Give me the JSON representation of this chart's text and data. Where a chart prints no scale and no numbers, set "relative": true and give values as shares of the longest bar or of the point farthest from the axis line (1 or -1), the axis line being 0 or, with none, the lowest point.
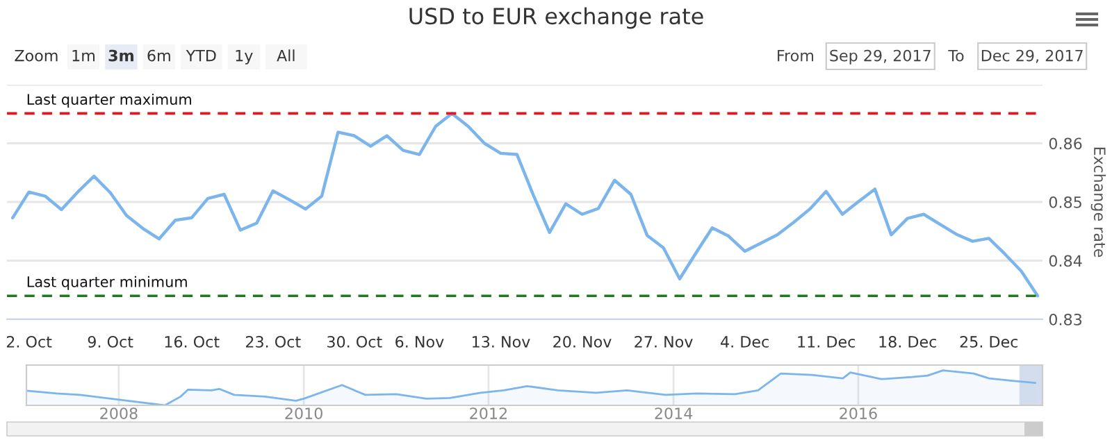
{
  "chart_data": [
    {
      "type": "line",
      "title": "USD to EUR exchange rate",
      "ylabel": "Exchange rate",
      "color": "#7cb5ec",
      "categories": [
        null,
        "2. Oct",
        null,
        null,
        null,
        null,
        "9. Oct",
        null,
        null,
        null,
        null,
        "16. Oct",
        null,
        null,
        null,
        null,
        "23. Oct",
        null,
        null,
        null,
        null,
        "30. Oct",
        null,
        null,
        null,
        "6. Nov",
        null,
        null,
        null,
        null,
        "13. Nov",
        null,
        null,
        null,
        null,
        "20. Nov",
        null,
        null,
        null,
        null,
        "27. Nov",
        null,
        null,
        null,
        null,
        "4. Dec",
        null,
        null,
        null,
        null,
        "11. Dec",
        null,
        null,
        null,
        null,
        "18. Dec",
        null,
        null,
        null,
        null,
        "25. Dec",
        null,
        null,
        null
      ],
      "values": [
        0.8473,
        0.8517,
        0.851,
        0.8487,
        0.8517,
        0.8544,
        0.8516,
        0.8477,
        0.8455,
        0.8437,
        0.8469,
        0.8473,
        0.8506,
        0.8513,
        0.8452,
        0.8464,
        0.8519,
        0.8504,
        0.8488,
        0.851,
        0.8619,
        0.8613,
        0.8595,
        0.8613,
        0.8588,
        0.8581,
        0.8629,
        0.8651,
        0.8629,
        0.86,
        0.8583,
        0.8581,
        0.8512,
        0.8448,
        0.8497,
        0.8479,
        0.8489,
        0.8537,
        0.8513,
        0.8443,
        0.8422,
        0.8369,
        0.8413,
        0.8456,
        0.8442,
        0.8416,
        0.843,
        0.8444,
        0.8465,
        0.8488,
        0.8518,
        0.8479,
        0.8501,
        0.8522,
        0.8444,
        0.8472,
        0.8479,
        0.8462,
        0.8445,
        0.8433,
        0.8438,
        0.8411,
        0.8382,
        0.834
      ],
      "ylim": [
        0.83,
        0.87
      ],
      "yticks": [
        0.83,
        0.84,
        0.85,
        0.86,
        {
          "value": 0.87,
          "label": null
        }
      ],
      "ref_lines": [
        {
          "axis": "y",
          "value": 0.8651,
          "label": "Last quarter maximum",
          "color": "#e8141e",
          "line_style": "dashed"
        },
        {
          "axis": "y",
          "value": 0.834,
          "label": "Last quarter minimum",
          "color": "#1f7a1f",
          "line_style": "dashed"
        }
      ],
      "annotations": [
        "Zoom",
        "1m",
        "3m",
        "6m",
        "YTD",
        "1y",
        "All",
        "From",
        "Sep 29, 2017",
        "To",
        "Dec 29, 2017"
      ],
      "grid": "y",
      "legend": false,
      "marker": "none",
      "line_style": "solid"
    },
    {
      "type": "area",
      "relative": true,
      "color": "#7cb5ec",
      "x": [
        "2007-01",
        "2007-05",
        "2007-08",
        "2007-12",
        "2008-04",
        "2008-07",
        "2008-09",
        "2008-10",
        "2009-01",
        "2009-02",
        "2009-04",
        "2009-08",
        "2009-12",
        "2010-01",
        "2010-06",
        "2010-09",
        "2011-01",
        "2011-05",
        "2011-08",
        "2011-12",
        "2012-03",
        "2012-06",
        "2012-10",
        "2013-03",
        "2013-07",
        "2013-12",
        "2014-04",
        "2014-09",
        "2014-12",
        "2015-03",
        "2015-07",
        "2015-11",
        "2015-12",
        "2016-04",
        "2016-08",
        "2016-10",
        "2016-12",
        "2017-04",
        "2017-06",
        "2017-09",
        "2017-12"
      ],
      "values": [
        0.42,
        0.34,
        0.3,
        0.19,
        0.08,
        0,
        0.25,
        0.45,
        0.43,
        0.47,
        0.3,
        0.25,
        0.13,
        0.19,
        0.58,
        0.3,
        0.32,
        0.19,
        0.21,
        0.36,
        0.43,
        0.55,
        0.43,
        0.36,
        0.43,
        0.3,
        0.34,
        0.32,
        0.43,
        0.91,
        0.87,
        0.77,
        0.94,
        0.75,
        0.81,
        0.85,
        1,
        0.91,
        0.77,
        0.7,
        0.64
      ],
      "xlim": [
        "2007-01",
        "2017-12-29"
      ],
      "xticks": [
        "2008",
        "2010",
        "2012",
        "2014",
        "2016"
      ],
      "bands": [
        {
          "axis": "x",
          "from": "2017-09-29",
          "to": "2017-12-29",
          "color": "#c8d4e8"
        }
      ],
      "tick_labels": "x",
      "grid": "x"
    }
  ]
}
